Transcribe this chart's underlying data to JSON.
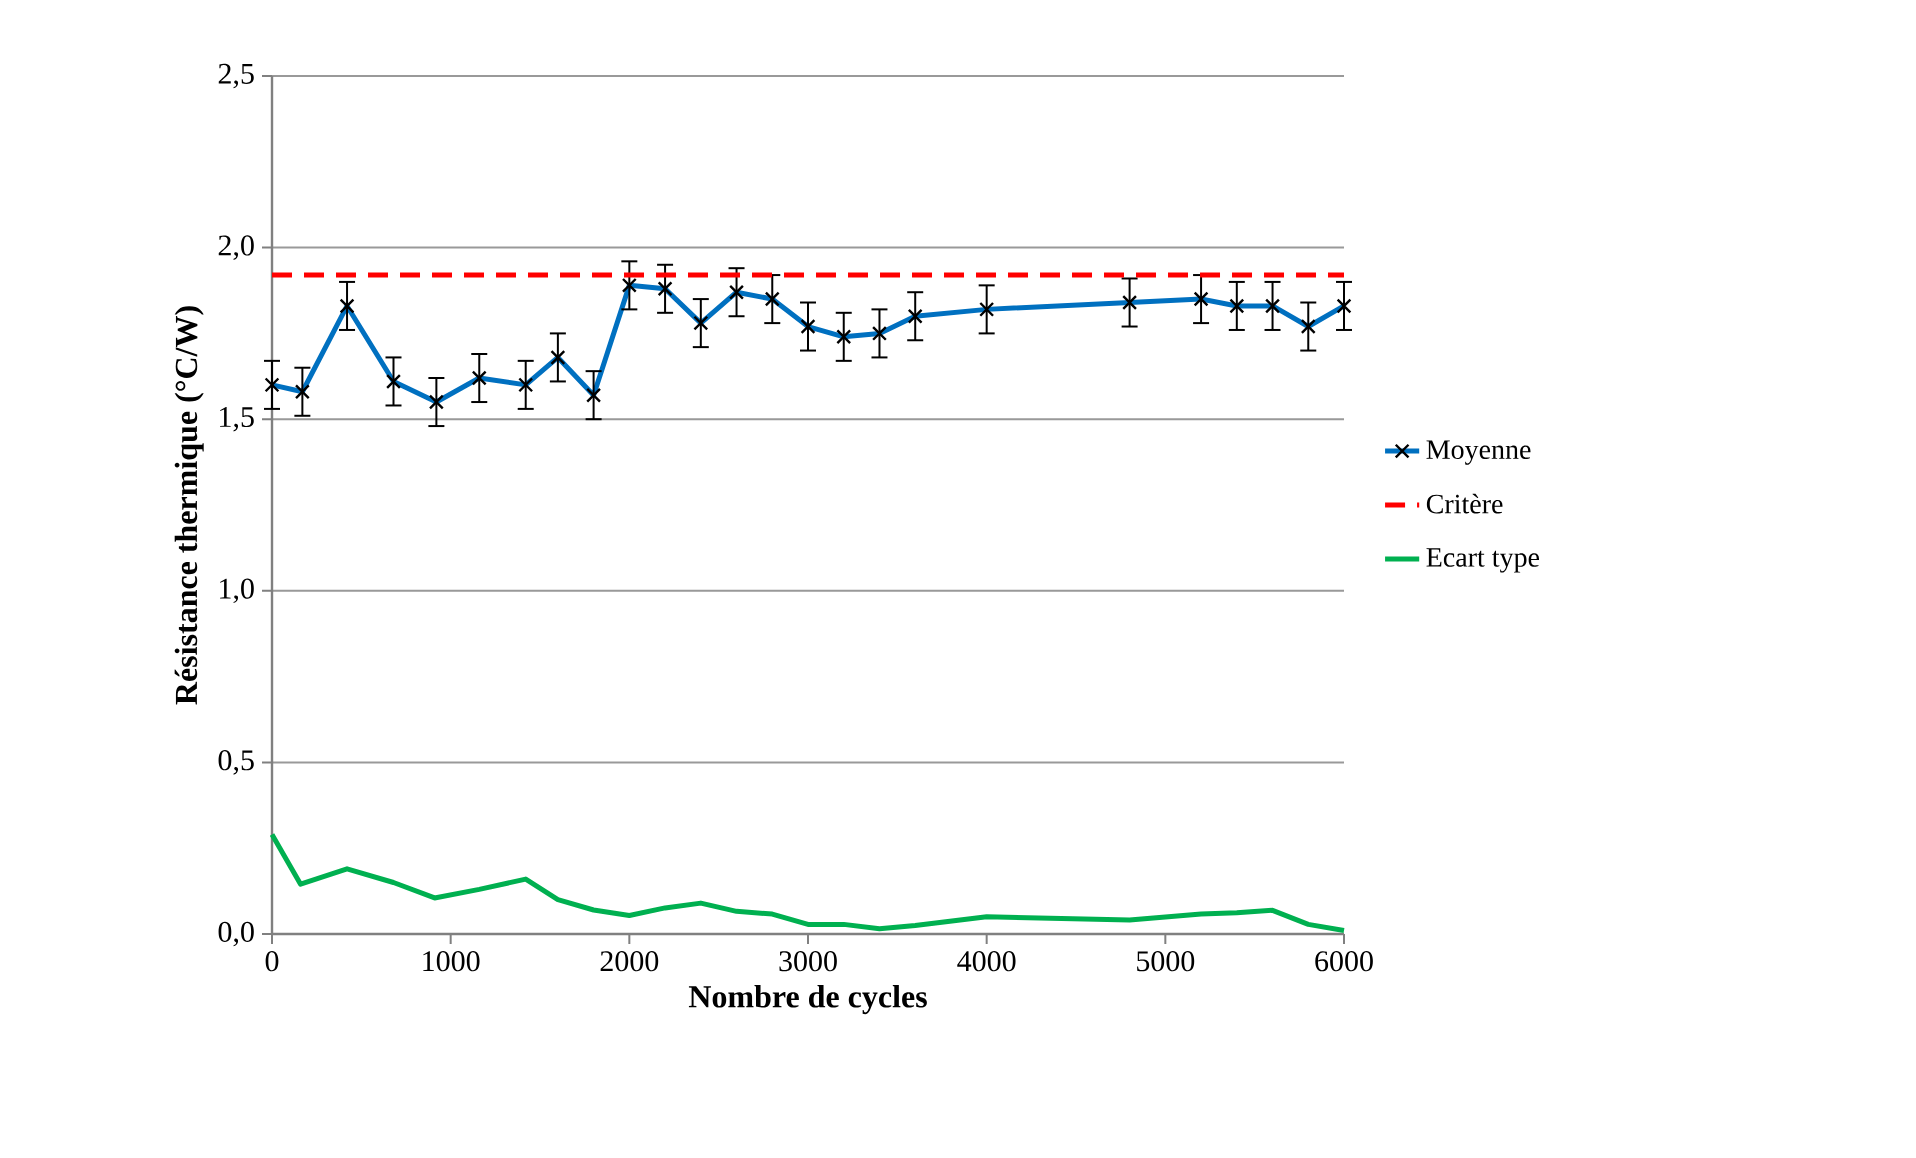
{
  "chart_data": {
    "type": "line",
    "xlabel": "Nombre de cycles",
    "ylabel": "Résistance thermique (°C/W)",
    "xlim": [
      0,
      6000
    ],
    "xticks": [
      0,
      1000,
      2000,
      3000,
      4000,
      5000,
      6000
    ],
    "ylim": [
      0,
      2.5
    ],
    "yticks": [
      {
        "value": 0,
        "label": "0,0"
      },
      {
        "value": 0.5,
        "label": "0,5"
      },
      {
        "value": 1,
        "label": "1,0"
      },
      {
        "value": 1.5,
        "label": "1,5"
      },
      {
        "value": 2,
        "label": "2,0"
      },
      {
        "value": 2.5,
        "label": "2,5"
      }
    ],
    "grid": "y",
    "legend": "right",
    "series": [
      {
        "name": "Moyenne",
        "color": "#0070c0",
        "marker": "cross",
        "line_style": "solid",
        "x": [
          0,
          170,
          420,
          680,
          920,
          1160,
          1420,
          1600,
          1800,
          2000,
          2200,
          2400,
          2600,
          2800,
          3000,
          3200,
          3400,
          3600,
          4000,
          4800,
          5200,
          5400,
          5600,
          5800,
          6000
        ],
        "values": [
          1.6,
          1.58,
          1.83,
          1.61,
          1.55,
          1.62,
          1.6,
          1.68,
          1.57,
          1.89,
          1.88,
          1.78,
          1.87,
          1.85,
          1.77,
          1.74,
          1.75,
          1.8,
          1.82,
          1.84,
          1.85,
          1.83,
          1.83,
          1.77,
          1.83
        ],
        "errors": [
          0.07,
          0.07,
          0.07,
          0.07,
          0.07,
          0.07,
          0.07,
          0.07,
          0.07,
          0.07,
          0.07,
          0.07,
          0.07,
          0.07,
          0.07,
          0.07,
          0.07,
          0.07,
          0.07,
          0.07,
          0.07,
          0.07,
          0.07,
          0.07,
          0.07
        ]
      },
      {
        "name": "Critère",
        "color": "#ff0000",
        "marker": "none",
        "line_style": "dashed",
        "x": [
          0,
          6000
        ],
        "values": [
          1.92,
          1.92
        ]
      },
      {
        "name": "Ecart type",
        "color": "#00b050",
        "marker": "none",
        "line_style": "solid",
        "x": [
          0,
          160,
          420,
          680,
          910,
          1160,
          1420,
          1600,
          1800,
          2000,
          2200,
          2400,
          2600,
          2800,
          3000,
          3200,
          3400,
          3600,
          4000,
          4800,
          5200,
          5400,
          5600,
          5800,
          6000
        ],
        "values": [
          0.29,
          0.145,
          0.19,
          0.15,
          0.105,
          0.13,
          0.16,
          0.1,
          0.07,
          0.054,
          0.076,
          0.09,
          0.066,
          0.058,
          0.028,
          0.028,
          0.015,
          0.025,
          0.05,
          0.041,
          0.058,
          0.062,
          0.069,
          0.028,
          0.01
        ]
      }
    ]
  }
}
